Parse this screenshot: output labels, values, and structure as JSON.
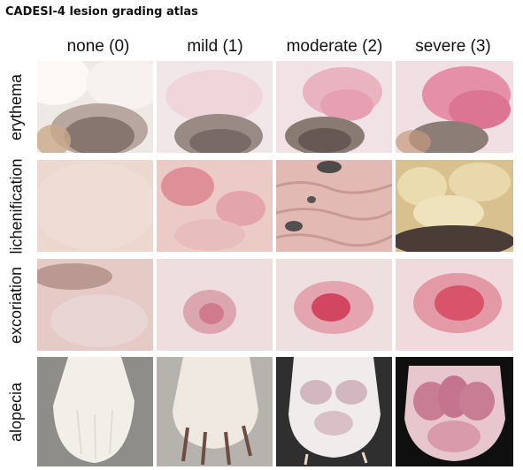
{
  "title": "CADESI-4 lesion grading atlas",
  "columns": [
    "none (0)",
    "mild (1)",
    "moderate (2)",
    "severe (3)"
  ],
  "rows": [
    "erythema",
    "lichenification",
    "excoriation",
    "alopecia"
  ],
  "grid": {
    "erythema": [
      "photo",
      "photo",
      "photo",
      "photo"
    ],
    "lichenification": [
      "photo",
      "photo",
      "photo",
      "photo"
    ],
    "excoriation": [
      "photo",
      "photo",
      "photo",
      "photo"
    ],
    "alopecia": [
      "photo",
      "photo",
      "photo",
      "photo"
    ]
  },
  "colors": {
    "fur": "#f3ecea",
    "pink_skin": "#e9b8bc",
    "inflamed": "#d84a63",
    "pigment": "#5c514d",
    "photo_background_gray": "#9a9a98",
    "photo_background_black": "#111111"
  }
}
